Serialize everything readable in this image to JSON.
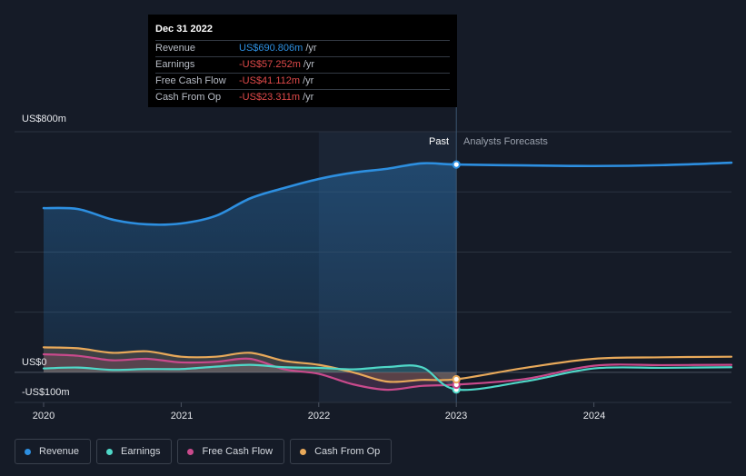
{
  "chart_data": {
    "type": "line",
    "y_axis": {
      "top_label": "US$800m",
      "zero_label": "US$0",
      "bottom_label": "-US$100m",
      "ylim": [
        -100,
        800
      ]
    },
    "x_axis": {
      "tick_labels": [
        "2020",
        "2021",
        "2022",
        "2023",
        "2024"
      ],
      "xlim": [
        2020.0,
        2025.0
      ]
    },
    "divider_date": "2022-12-31",
    "past_label": "Past",
    "forecast_label": "Analysts Forecasts",
    "series": [
      {
        "name": "Revenue",
        "color": "#2d8fe0",
        "x": [
          2020.0,
          2020.25,
          2020.5,
          2020.75,
          2021.0,
          2021.25,
          2021.5,
          2021.75,
          2022.0,
          2022.25,
          2022.5,
          2022.75,
          2023.0,
          2023.5,
          2024.0,
          2024.5,
          2025.0
        ],
        "y": [
          546,
          543,
          508,
          492,
          495,
          520,
          578,
          613,
          643,
          664,
          677,
          695,
          691,
          688,
          686,
          689,
          697
        ]
      },
      {
        "name": "Earnings",
        "color": "#4fd8c8",
        "x": [
          2020.0,
          2020.25,
          2020.5,
          2020.75,
          2021.0,
          2021.25,
          2021.5,
          2021.75,
          2022.0,
          2022.25,
          2022.5,
          2022.75,
          2023.0,
          2023.5,
          2024.0,
          2024.5,
          2025.0
        ],
        "y": [
          13,
          16,
          8,
          11,
          11,
          19,
          25,
          17,
          15,
          10,
          18,
          17,
          -57,
          -30,
          13,
          15,
          17
        ]
      },
      {
        "name": "Free Cash Flow",
        "color": "#c94a8c",
        "x": [
          2020.0,
          2020.25,
          2020.5,
          2020.75,
          2021.0,
          2021.25,
          2021.5,
          2021.75,
          2022.0,
          2022.25,
          2022.5,
          2022.75,
          2023.0,
          2023.5,
          2024.0,
          2024.5,
          2025.0
        ],
        "y": [
          60,
          55,
          40,
          45,
          33,
          35,
          45,
          10,
          -5,
          -40,
          -58,
          -45,
          -41,
          -22,
          22,
          24,
          25
        ]
      },
      {
        "name": "Cash From Op",
        "color": "#e8a95a",
        "x": [
          2020.0,
          2020.25,
          2020.5,
          2020.75,
          2021.0,
          2021.25,
          2021.5,
          2021.75,
          2022.0,
          2022.25,
          2022.5,
          2022.75,
          2023.0,
          2023.5,
          2024.0,
          2024.5,
          2025.0
        ],
        "y": [
          83,
          80,
          65,
          70,
          52,
          52,
          65,
          38,
          25,
          0,
          -31,
          -25,
          -23,
          15,
          45,
          50,
          52
        ]
      }
    ]
  },
  "tooltip": {
    "date": "Dec 31 2022",
    "rows": [
      {
        "name": "Revenue",
        "value": "US$690.806m",
        "unit": "/yr",
        "positive": true
      },
      {
        "name": "Earnings",
        "value": "-US$57.252m",
        "unit": "/yr",
        "positive": false
      },
      {
        "name": "Free Cash Flow",
        "value": "-US$41.112m",
        "unit": "/yr",
        "positive": false
      },
      {
        "name": "Cash From Op",
        "value": "-US$23.311m",
        "unit": "/yr",
        "positive": false
      }
    ]
  },
  "legend": [
    {
      "label": "Revenue",
      "color": "#2d8fe0"
    },
    {
      "label": "Earnings",
      "color": "#4fd8c8"
    },
    {
      "label": "Free Cash Flow",
      "color": "#c94a8c"
    },
    {
      "label": "Cash From Op",
      "color": "#e8a95a"
    }
  ]
}
